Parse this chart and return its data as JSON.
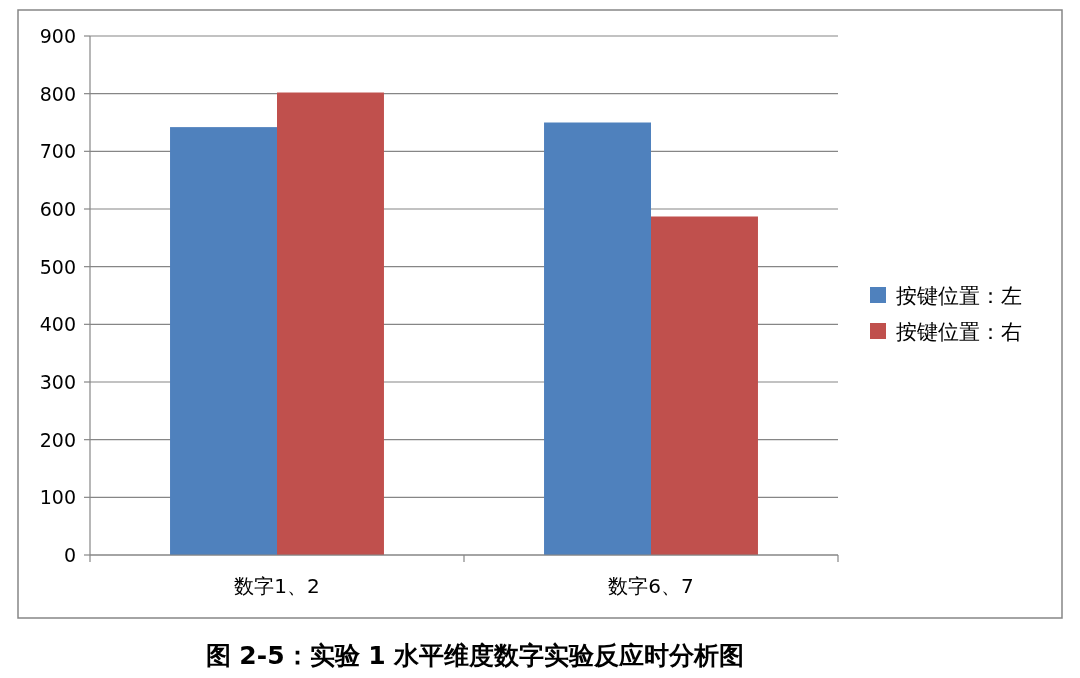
{
  "chart_data": {
    "type": "bar",
    "title": "图 2-5：实验 1 水平维度数字实验反应时分析图",
    "categories": [
      "数字1、2",
      "数字6、7"
    ],
    "series": [
      {
        "name": "按键位置：左",
        "color": "#4f81bd",
        "values": [
          742,
          750
        ]
      },
      {
        "name": "按键位置：右",
        "color": "#c0504d",
        "values": [
          802,
          587
        ]
      }
    ],
    "ylim": [
      0,
      900
    ],
    "yticks": [
      0,
      100,
      200,
      300,
      400,
      500,
      600,
      700,
      800,
      900
    ],
    "grid": "y",
    "legend": "right"
  }
}
